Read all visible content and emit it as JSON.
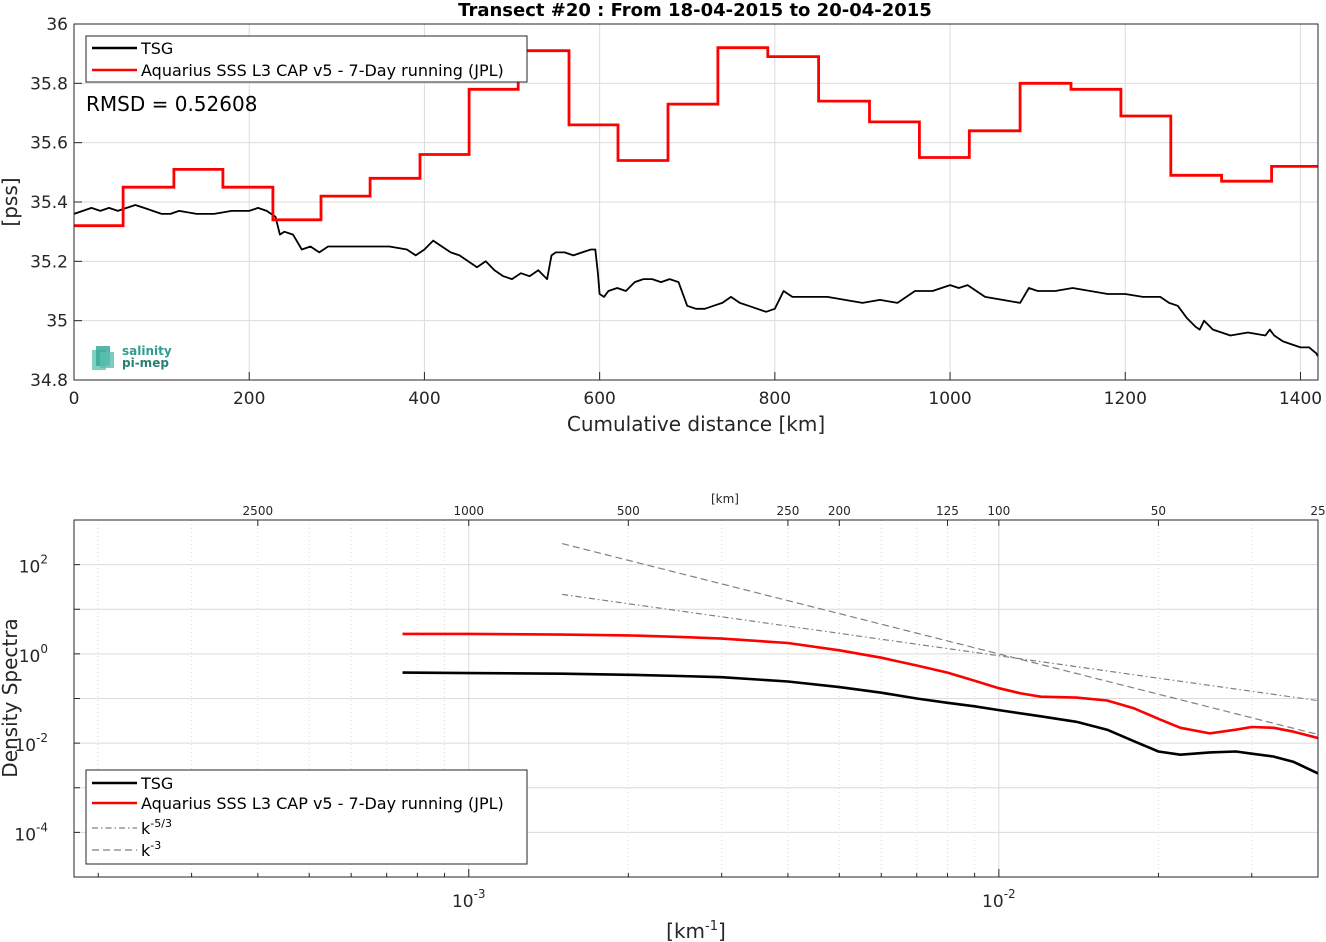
{
  "logo": {
    "line1": "salinity",
    "line2": "pi-mep"
  },
  "chart_data": [
    {
      "type": "line",
      "title": "Transect #20 : From 18-04-2015 to 20-04-2015",
      "xlabel": "Cumulative distance [km]",
      "ylabel": "[pss]",
      "xlim": [
        0,
        1420
      ],
      "ylim": [
        34.8,
        36.0
      ],
      "xticks": [
        0,
        200,
        400,
        600,
        800,
        1000,
        1200,
        1400
      ],
      "yticks": [
        34.8,
        35.0,
        35.2,
        35.4,
        35.6,
        35.8,
        36.0
      ],
      "ytick_labels": [
        "34.8",
        "35",
        "35.2",
        "35.4",
        "35.6",
        "35.8",
        "36"
      ],
      "grid": true,
      "legend_position": "top-left",
      "annotation": "RMSD = 0.52608",
      "series": [
        {
          "name": "TSG",
          "color": "#000000",
          "x": [
            0,
            10,
            20,
            30,
            40,
            50,
            60,
            70,
            80,
            90,
            100,
            110,
            120,
            140,
            160,
            180,
            200,
            210,
            220,
            225,
            230,
            235,
            240,
            250,
            260,
            270,
            280,
            290,
            300,
            320,
            340,
            360,
            380,
            390,
            400,
            410,
            420,
            430,
            440,
            450,
            460,
            470,
            480,
            490,
            500,
            510,
            520,
            530,
            540,
            545,
            550,
            560,
            570,
            580,
            590,
            595,
            598,
            600,
            605,
            610,
            620,
            630,
            640,
            650,
            660,
            670,
            680,
            690,
            700,
            710,
            720,
            730,
            740,
            750,
            760,
            770,
            780,
            790,
            800,
            810,
            820,
            830,
            840,
            860,
            880,
            900,
            920,
            940,
            950,
            960,
            980,
            1000,
            1010,
            1020,
            1040,
            1060,
            1080,
            1090,
            1100,
            1120,
            1140,
            1160,
            1180,
            1200,
            1220,
            1240,
            1250,
            1260,
            1270,
            1280,
            1285,
            1290,
            1300,
            1310,
            1320,
            1340,
            1360,
            1365,
            1370,
            1380,
            1390,
            1400,
            1410,
            1418,
            1420
          ],
          "y": [
            35.36,
            35.37,
            35.38,
            35.37,
            35.38,
            35.37,
            35.38,
            35.39,
            35.38,
            35.37,
            35.36,
            35.36,
            35.37,
            35.36,
            35.36,
            35.37,
            35.37,
            35.38,
            35.37,
            35.36,
            35.35,
            35.29,
            35.3,
            35.29,
            35.24,
            35.25,
            35.23,
            35.25,
            35.25,
            35.25,
            35.25,
            35.25,
            35.24,
            35.22,
            35.24,
            35.27,
            35.25,
            35.23,
            35.22,
            35.2,
            35.18,
            35.2,
            35.17,
            35.15,
            35.14,
            35.16,
            35.15,
            35.17,
            35.14,
            35.22,
            35.23,
            35.23,
            35.22,
            35.23,
            35.24,
            35.24,
            35.16,
            35.09,
            35.08,
            35.1,
            35.11,
            35.1,
            35.13,
            35.14,
            35.14,
            35.13,
            35.14,
            35.13,
            35.05,
            35.04,
            35.04,
            35.05,
            35.06,
            35.08,
            35.06,
            35.05,
            35.04,
            35.03,
            35.04,
            35.1,
            35.08,
            35.08,
            35.08,
            35.08,
            35.07,
            35.06,
            35.07,
            35.06,
            35.08,
            35.1,
            35.1,
            35.12,
            35.11,
            35.12,
            35.08,
            35.07,
            35.06,
            35.11,
            35.1,
            35.1,
            35.11,
            35.1,
            35.09,
            35.09,
            35.08,
            35.08,
            35.06,
            35.05,
            35.01,
            34.98,
            34.97,
            35.0,
            34.97,
            34.96,
            34.95,
            34.96,
            34.95,
            34.97,
            34.95,
            34.93,
            34.92,
            34.91,
            34.91,
            34.89,
            34.88
          ]
        },
        {
          "name": "Aquarius SSS L3 CAP v5 - 7-Day running (JPL)",
          "color": "#ff0000",
          "type": "step",
          "x": [
            0,
            56,
            114,
            170,
            227,
            282,
            338,
            395,
            451,
            507,
            565,
            621,
            678,
            735,
            792,
            850,
            908,
            965,
            1022,
            1080,
            1138,
            1195,
            1252,
            1310,
            1367,
            1420
          ],
          "y": [
            35.32,
            35.45,
            35.51,
            35.45,
            35.34,
            35.42,
            35.48,
            35.56,
            35.78,
            35.91,
            35.66,
            35.54,
            35.73,
            35.92,
            35.89,
            35.74,
            35.67,
            35.55,
            35.64,
            35.8,
            35.78,
            35.69,
            35.49,
            35.47,
            35.52,
            35.52
          ]
        }
      ]
    },
    {
      "type": "line",
      "xlabel": "[km⁻¹]",
      "xlabel_base": "[km",
      "xlabel_sup": "-1",
      "xlabel_end": "]",
      "ylabel": "Density Spectra",
      "xscale": "log",
      "yscale": "log",
      "xlim": [
        0.00018,
        0.04
      ],
      "ylim": [
        1e-05,
        1000
      ],
      "xticks": [
        0.001,
        0.01
      ],
      "xtick_labels": [
        {
          "base": "10",
          "exp": "-3"
        },
        {
          "base": "10",
          "exp": "-2"
        }
      ],
      "yticks": [
        0.0001,
        0.01,
        1,
        100
      ],
      "ytick_labels": [
        {
          "base": "10",
          "exp": "-4"
        },
        {
          "base": "10",
          "exp": "-2"
        },
        {
          "base": "10",
          "exp": "0"
        },
        {
          "base": "10",
          "exp": "2"
        }
      ],
      "top_axis_label": "[km]",
      "top_axis_ticks": [
        2500,
        1000,
        500,
        250,
        200,
        125,
        100,
        50,
        25
      ],
      "grid": true,
      "legend_position": "bottom-left",
      "series": [
        {
          "name": "TSG",
          "color": "#000000",
          "x": [
            0.00075,
            0.001,
            0.0015,
            0.002,
            0.0025,
            0.003,
            0.004,
            0.005,
            0.006,
            0.007,
            0.008,
            0.009,
            0.01,
            0.012,
            0.014,
            0.016,
            0.018,
            0.02,
            0.022,
            0.025,
            0.028,
            0.03,
            0.033,
            0.036,
            0.04
          ],
          "y": [
            0.38,
            0.37,
            0.36,
            0.34,
            0.32,
            0.3,
            0.24,
            0.18,
            0.135,
            0.1,
            0.08,
            0.067,
            0.055,
            0.04,
            0.03,
            0.02,
            0.011,
            0.0065,
            0.0055,
            0.0062,
            0.0065,
            0.0058,
            0.005,
            0.0038,
            0.0021
          ]
        },
        {
          "name": "Aquarius SSS L3 CAP v5 - 7-Day running (JPL)",
          "color": "#ff0000",
          "x": [
            0.00075,
            0.001,
            0.0015,
            0.002,
            0.0025,
            0.003,
            0.004,
            0.005,
            0.006,
            0.007,
            0.008,
            0.009,
            0.01,
            0.011,
            0.012,
            0.014,
            0.016,
            0.018,
            0.02,
            0.022,
            0.025,
            0.028,
            0.03,
            0.033,
            0.036,
            0.04
          ],
          "y": [
            2.8,
            2.8,
            2.7,
            2.6,
            2.4,
            2.2,
            1.75,
            1.2,
            0.82,
            0.55,
            0.38,
            0.25,
            0.17,
            0.13,
            0.11,
            0.105,
            0.09,
            0.06,
            0.035,
            0.022,
            0.0165,
            0.02,
            0.023,
            0.022,
            0.018,
            0.013
          ]
        },
        {
          "name": "k^-5/3",
          "name_base": "k",
          "name_sup": "-5/3",
          "color": "#808080",
          "dash": "dashdot",
          "x": [
            0.0015,
            0.04
          ],
          "y": [
            21.5,
            0.0899
          ]
        },
        {
          "name": "k^-3",
          "name_base": "k",
          "name_sup": "-3",
          "color": "#808080",
          "dash": "dashed",
          "x": [
            0.0015,
            0.04
          ],
          "y": [
            296,
            0.0156
          ]
        }
      ]
    }
  ]
}
